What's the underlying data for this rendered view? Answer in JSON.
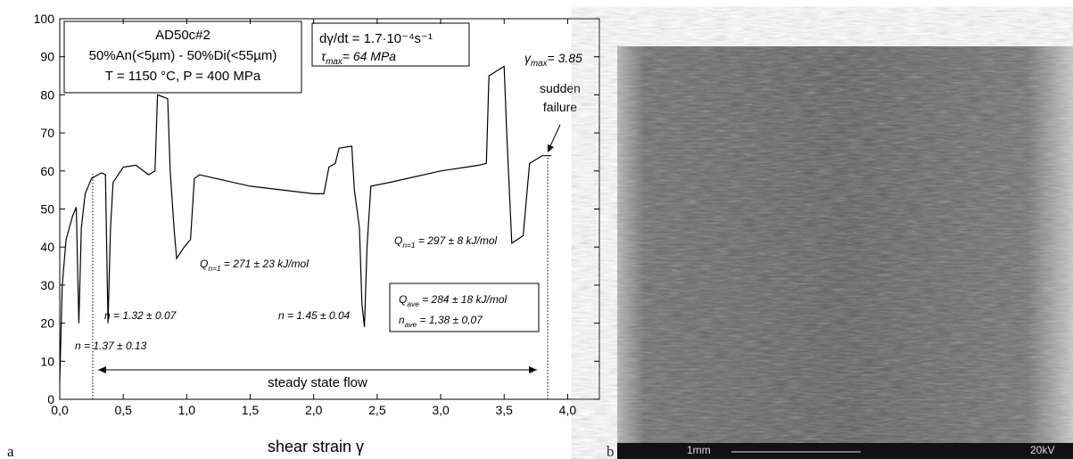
{
  "chart_data": {
    "type": "line",
    "x_label": "shear strain γ",
    "x": [
      0.0,
      0.02,
      0.05,
      0.1,
      0.13,
      0.15,
      0.17,
      0.2,
      0.25,
      0.3,
      0.33,
      0.36,
      0.38,
      0.4,
      0.42,
      0.5,
      0.6,
      0.7,
      0.75,
      0.77,
      0.85,
      0.87,
      0.9,
      0.92,
      0.98,
      1.03,
      1.06,
      1.1,
      1.5,
      2.0,
      2.08,
      2.12,
      2.17,
      2.2,
      2.3,
      2.32,
      2.36,
      2.38,
      2.4,
      2.42,
      2.45,
      2.6,
      3.0,
      3.3,
      3.36,
      3.38,
      3.5,
      3.52,
      3.56,
      3.65,
      3.7,
      3.8,
      3.87
    ],
    "series": [
      {
        "color": "#000000",
        "values": [
          5,
          30,
          42,
          48,
          50.5,
          20,
          45,
          54,
          58,
          59,
          59.5,
          59,
          20,
          45,
          57,
          61,
          61.5,
          59,
          60,
          80,
          79,
          60,
          45,
          37,
          40,
          42,
          58,
          59,
          56,
          54,
          54,
          61,
          62,
          66,
          66.5,
          55,
          45,
          25,
          19,
          40,
          56,
          57,
          60,
          61.5,
          62,
          85,
          87.5,
          70,
          41,
          43,
          62,
          64,
          64
        ]
      }
    ],
    "xlim": [
      0,
      4.25
    ],
    "ylim": [
      0,
      100
    ],
    "xticks": [
      {
        "value": 0,
        "label": "0,0"
      },
      {
        "value": 0.5,
        "label": "0,5"
      },
      {
        "value": 1,
        "label": "1,0"
      },
      {
        "value": 1.5,
        "label": "1,5"
      },
      {
        "value": 2,
        "label": "2,0"
      },
      {
        "value": 2.5,
        "label": "2,5"
      },
      {
        "value": 3,
        "label": "3,0"
      },
      {
        "value": 3.5,
        "label": "3,5"
      },
      {
        "value": 4,
        "label": "4,0"
      }
    ],
    "yticks": [
      0,
      10,
      20,
      30,
      40,
      50,
      60,
      70,
      80,
      90,
      100
    ],
    "grid": false,
    "annotations": {
      "sample": [
        "AD50c#2",
        "50%An(<5µm) - 50%Di(<55µm)",
        "T = 1150 °C, P = 400 MPa"
      ],
      "rate": "dγ/dt = 1.7·10⁻⁴s⁻¹",
      "tau": {
        "symbol": "τ",
        "sub": "max",
        "rest": "= 64 MPa"
      },
      "gamma": {
        "symbol": "γ",
        "sub": "max",
        "rest": "= 3.85"
      },
      "failure": [
        "sudden",
        "failure"
      ],
      "n_labels": [
        "n = 1.37 ± 0.13",
        "n = 1.32 ± 0.07",
        "n = 1.45 ± 0.04"
      ],
      "q_labels": [
        {
          "symbol": "Q",
          "sub": "n=1",
          "rest": " = 271 ± 23 kJ/mol"
        },
        {
          "symbol": "Q",
          "sub": "n=1",
          "rest": " = 297 ± 8 kJ/mol"
        }
      ],
      "ave": [
        {
          "symbol": "Q",
          "sub": "ave",
          "rest": " = 284 ± 18 kJ/mol"
        },
        {
          "symbol": "n",
          "sub": "ave",
          "rest": " = 1,38 ± 0,07"
        }
      ],
      "steady": "steady state flow"
    }
  },
  "panels": {
    "a": "a",
    "b": "b"
  },
  "sem": {
    "scale": "1mm",
    "voltage": "20kV"
  }
}
